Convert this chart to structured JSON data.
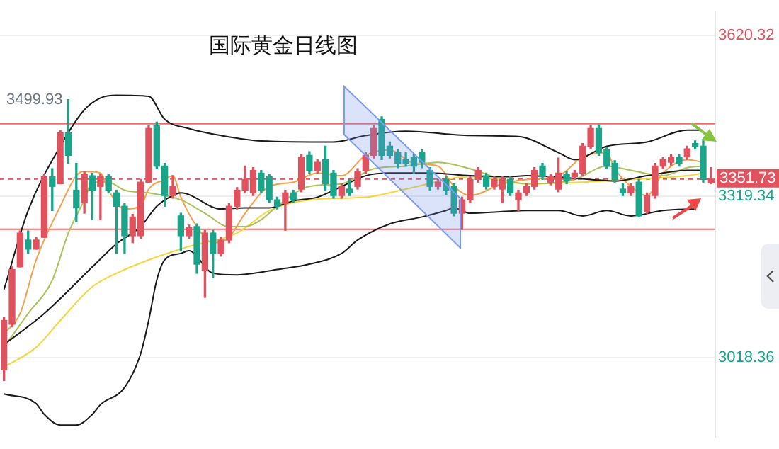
{
  "chart_data": {
    "type": "candlestick",
    "title": "国际黄金日线图",
    "categories": [
      null,
      null,
      null,
      null,
      null,
      null,
      null,
      null,
      null,
      null,
      null,
      null,
      null,
      null,
      null,
      null,
      null,
      null,
      null,
      null,
      null,
      null,
      null,
      null,
      null,
      null,
      null,
      null,
      null,
      null,
      null,
      null,
      null,
      null,
      null,
      null,
      null,
      null,
      null,
      null,
      null,
      null,
      null,
      null,
      null,
      null,
      null,
      null,
      null,
      null,
      null,
      null,
      null,
      null,
      null,
      null,
      null,
      null,
      null,
      null,
      null,
      null,
      null,
      null,
      null,
      null,
      null,
      null,
      null,
      null,
      null,
      null,
      null,
      null,
      null,
      null,
      null,
      null,
      null,
      null,
      null,
      null,
      null,
      null,
      null,
      null,
      null,
      null,
      null
    ],
    "ohlc": [
      [
        2996,
        3093,
        2976,
        3088
      ],
      [
        3081,
        3188,
        3076,
        3183
      ],
      [
        3188,
        3255,
        3188,
        3251
      ],
      [
        3238,
        3255,
        3213,
        3221
      ],
      [
        3221,
        3243,
        3221,
        3238
      ],
      [
        3243,
        3361,
        3243,
        3356
      ],
      [
        3356,
        3371,
        3293,
        3338
      ],
      [
        3343,
        3443,
        3343,
        3438
      ],
      [
        3438,
        3499.93,
        3381,
        3396
      ],
      [
        3331,
        3381,
        3273,
        3298
      ],
      [
        3308,
        3366,
        3288,
        3361
      ],
      [
        3358,
        3363,
        3276,
        3331
      ],
      [
        3338,
        3361,
        3276,
        3356
      ],
      [
        3356,
        3361,
        3326,
        3331
      ],
      [
        3326,
        3331,
        3213,
        3301
      ],
      [
        3301,
        3306,
        3213,
        3246
      ],
      [
        3246,
        3286,
        3233,
        3281
      ],
      [
        3246,
        3351,
        3241,
        3346
      ],
      [
        3346,
        3451,
        3346,
        3446
      ],
      [
        3451,
        3458,
        3371,
        3376
      ],
      [
        3376,
        3381,
        3301,
        3321
      ],
      [
        3321,
        3358,
        3316,
        3338
      ],
      [
        3283,
        3288,
        3218,
        3246
      ],
      [
        3246,
        3266,
        3241,
        3261
      ],
      [
        3263,
        3268,
        3176,
        3193
      ],
      [
        3181,
        3256,
        3131,
        3251
      ],
      [
        3251,
        3256,
        3168,
        3213
      ],
      [
        3213,
        3243,
        3208,
        3238
      ],
      [
        3238,
        3306,
        3233,
        3301
      ],
      [
        3301,
        3336,
        3296,
        3331
      ],
      [
        3331,
        3376,
        3326,
        3351
      ],
      [
        3326,
        3373,
        3321,
        3368
      ],
      [
        3363,
        3368,
        3326,
        3331
      ],
      [
        3356,
        3361,
        3308,
        3313
      ],
      [
        3313,
        3318,
        3296,
        3301
      ],
      [
        3306,
        3331,
        3256,
        3326
      ],
      [
        3326,
        3331,
        3308,
        3313
      ],
      [
        3333,
        3398,
        3328,
        3393
      ],
      [
        3396,
        3403,
        3363,
        3368
      ],
      [
        3368,
        3388,
        3363,
        3383
      ],
      [
        3388,
        3413,
        3331,
        3343
      ],
      [
        3363,
        3368,
        3316,
        3321
      ],
      [
        3321,
        3343,
        3316,
        3338
      ],
      [
        3333,
        3351,
        3321,
        3326
      ],
      [
        3338,
        3371,
        3333,
        3366
      ],
      [
        3368,
        3401,
        3363,
        3396
      ],
      [
        3396,
        3451,
        3391,
        3446
      ],
      [
        3463,
        3468,
        3388,
        3396
      ],
      [
        3413,
        3421,
        3391,
        3396
      ],
      [
        3401,
        3406,
        3373,
        3381
      ],
      [
        3388,
        3401,
        3376,
        3381
      ],
      [
        3393,
        3398,
        3363,
        3376
      ],
      [
        3401,
        3406,
        3373,
        3383
      ],
      [
        3368,
        3373,
        3331,
        3338
      ],
      [
        3338,
        3351,
        3333,
        3346
      ],
      [
        3351,
        3356,
        3323,
        3331
      ],
      [
        3338,
        3343,
        3283,
        3288
      ],
      [
        3288,
        3318,
        3258,
        3313
      ],
      [
        3313,
        3356,
        3308,
        3351
      ],
      [
        3351,
        3373,
        3346,
        3368
      ],
      [
        3358,
        3363,
        3333,
        3338
      ],
      [
        3338,
        3356,
        3333,
        3351
      ],
      [
        3333,
        3356,
        3308,
        3351
      ],
      [
        3351,
        3356,
        3321,
        3326
      ],
      [
        3313,
        3331,
        3293,
        3326
      ],
      [
        3326,
        3343,
        3321,
        3338
      ],
      [
        3338,
        3373,
        3333,
        3368
      ],
      [
        3376,
        3381,
        3351,
        3356
      ],
      [
        3346,
        3361,
        3341,
        3356
      ],
      [
        3333,
        3391,
        3328,
        3363
      ],
      [
        3361,
        3366,
        3343,
        3348
      ],
      [
        3356,
        3368,
        3351,
        3363
      ],
      [
        3363,
        3418,
        3358,
        3413
      ],
      [
        3413,
        3451,
        3408,
        3446
      ],
      [
        3446,
        3453,
        3396,
        3401
      ],
      [
        3406,
        3411,
        3371,
        3376
      ],
      [
        3381,
        3386,
        3346,
        3351
      ],
      [
        3333,
        3343,
        3321,
        3326
      ],
      [
        3326,
        3343,
        3321,
        3338
      ],
      [
        3346,
        3351,
        3281,
        3283
      ],
      [
        3291,
        3326,
        3288,
        3321
      ],
      [
        3321,
        3381,
        3316,
        3376
      ],
      [
        3376,
        3393,
        3371,
        3388
      ],
      [
        3383,
        3398,
        3378,
        3393
      ],
      [
        3393,
        3398,
        3376,
        3381
      ],
      [
        3393,
        3413,
        3388,
        3408
      ],
      [
        3418,
        3423,
        3408,
        3413
      ],
      [
        3413,
        3423,
        3346,
        3351
      ],
      [
        3345,
        3373,
        3343,
        3351.73
      ]
    ],
    "colors": [
      "#e0525e",
      "#e0525e",
      "#e0525e",
      "#1aa58a",
      "#e0525e",
      "#e0525e",
      "#1aa58a",
      "#e0525e",
      "#1aa58a",
      "#1aa58a",
      "#e0525e",
      "#1aa58a",
      "#e0525e",
      "#1aa58a",
      "#1aa58a",
      "#1aa58a",
      "#e0525e",
      "#e0525e",
      "#e0525e",
      "#1aa58a",
      "#1aa58a",
      "#e0525e",
      "#1aa58a",
      "#e0525e",
      "#1aa58a",
      "#e0525e",
      "#1aa58a",
      "#e0525e",
      "#e0525e",
      "#e0525e",
      "#e0525e",
      "#e0525e",
      "#1aa58a",
      "#1aa58a",
      "#1aa58a",
      "#e0525e",
      "#1aa58a",
      "#e0525e",
      "#1aa58a",
      "#e0525e",
      "#1aa58a",
      "#1aa58a",
      "#e0525e",
      "#1aa58a",
      "#e0525e",
      "#e0525e",
      "#e0525e",
      "#1aa58a",
      "#1aa58a",
      "#1aa58a",
      "#1aa58a",
      "#1aa58a",
      "#1aa58a",
      "#1aa58a",
      "#e0525e",
      "#1aa58a",
      "#1aa58a",
      "#e0525e",
      "#e0525e",
      "#e0525e",
      "#1aa58a",
      "#e0525e",
      "#e0525e",
      "#1aa58a",
      "#e0525e",
      "#e0525e",
      "#e0525e",
      "#1aa58a",
      "#e0525e",
      "#e0525e",
      "#1aa58a",
      "#e0525e",
      "#e0525e",
      "#e0525e",
      "#1aa58a",
      "#1aa58a",
      "#1aa58a",
      "#1aa58a",
      "#e0525e",
      "#1aa58a",
      "#e0525e",
      "#e0525e",
      "#e0525e",
      "#e0525e",
      "#1aa58a",
      "#e0525e",
      "#1aa58a",
      "#1aa58a",
      "#e0525e"
    ],
    "series": [
      {
        "type": "line",
        "color": "#1a1a1a",
        "values": [
          3146,
          null,
          null,
          3293,
          null,
          null,
          null,
          3413,
          null,
          null,
          3481,
          null,
          3503,
          null,
          3508,
          null,
          null,
          null,
          3506,
          null,
          3463,
          null,
          null,
          3446,
          null,
          null,
          null,
          3433,
          null,
          null,
          null,
          null,
          3423,
          null,
          null,
          null,
          null,
          null,
          null,
          null,
          null,
          3421,
          null,
          null,
          null,
          3433,
          null,
          null,
          null,
          null,
          3441,
          null,
          null,
          null,
          null,
          null,
          null,
          null,
          3433,
          null,
          null,
          null,
          null,
          null,
          3431,
          null,
          null,
          null,
          null,
          3401,
          null,
          3388,
          null,
          null,
          null,
          3413,
          null,
          null,
          null,
          null,
          3421,
          null,
          null,
          null,
          null,
          3443,
          null,
          3443,
          null
        ]
      },
      {
        "type": "line",
        "color": "#1a1a1a",
        "values": [
          3043,
          null,
          null,
          null,
          null,
          3101,
          null,
          null,
          null,
          null,
          null,
          3188,
          null,
          null,
          3231,
          null,
          null,
          3263,
          null,
          3301,
          null,
          3321,
          3326,
          null,
          null,
          null,
          null,
          3296,
          null,
          null,
          3298,
          null,
          null,
          3298,
          null,
          null,
          3311,
          null,
          null,
          3318,
          null,
          null,
          3338,
          null,
          null,
          3358,
          null,
          null,
          3363,
          null,
          null,
          null,
          null,
          3363,
          null,
          null,
          null,
          null,
          3358,
          null,
          null,
          null,
          null,
          3356,
          null,
          3358,
          null,
          null,
          null,
          null,
          null,
          null,
          null,
          3351,
          null,
          null,
          3348,
          null,
          null,
          null,
          3358,
          null,
          null,
          null,
          null,
          3368,
          null,
          3368,
          null
        ]
      },
      {
        "type": "line",
        "color": "#1a1a1a",
        "values": [
          2951,
          null,
          null,
          null,
          2933,
          2913,
          null,
          2893,
          null,
          2893,
          null,
          2913,
          2931,
          null,
          null,
          2963,
          null,
          3026,
          3088,
          3163,
          3201,
          null,
          3213,
          3218,
          null,
          null,
          3176,
          null,
          null,
          3173,
          null,
          3176,
          null,
          null,
          3183,
          null,
          null,
          null,
          3193,
          null,
          null,
          null,
          3213,
          null,
          3238,
          null,
          null,
          null,
          3268,
          null,
          null,
          null,
          3281,
          null,
          null,
          3293,
          3298,
          null,
          3288,
          null,
          null,
          null,
          3291,
          null,
          null,
          3293,
          null,
          null,
          null,
          3293,
          null,
          null,
          3283,
          null,
          null,
          3293,
          null,
          null,
          3283,
          null,
          null,
          null,
          3293,
          null,
          null,
          null,
          3296,
          null,
          null
        ]
      },
      {
        "type": "line",
        "color": "#f7a04b",
        "values": [
          3063,
          null,
          3101,
          null,
          3201,
          null,
          null,
          3301,
          null,
          3358,
          3366,
          null,
          3363,
          3331,
          null,
          3296,
          null,
          3301,
          3333,
          null,
          3351,
          3358,
          3318,
          null,
          3263,
          null,
          3233,
          null,
          3243,
          null,
          3288,
          null,
          null,
          3338,
          null,
          null,
          3346,
          null,
          null,
          3363,
          null,
          null,
          3358,
          null,
          null,
          3396,
          null,
          null,
          3406,
          null,
          null,
          3381,
          null,
          null,
          3376,
          null,
          3338,
          null,
          3321,
          null,
          null,
          null,
          3343,
          null,
          null,
          3351,
          null,
          null,
          null,
          3358,
          null,
          null,
          3393,
          null,
          null,
          3401,
          3371,
          null,
          3338,
          null,
          3321,
          null,
          3363,
          null,
          null,
          3388,
          null,
          3383,
          null
        ]
      },
      {
        "type": "line",
        "color": "#a9c25a",
        "values": [
          3038,
          null,
          null,
          3101,
          null,
          null,
          3163,
          null,
          3251,
          null,
          3313,
          3346,
          null,
          3346,
          null,
          3331,
          null,
          null,
          3326,
          null,
          null,
          null,
          3313,
          null,
          null,
          3288,
          null,
          null,
          3263,
          null,
          3263,
          null,
          3276,
          null,
          3301,
          null,
          null,
          null,
          3338,
          null,
          null,
          null,
          3343,
          null,
          null,
          null,
          3371,
          null,
          null,
          null,
          3376,
          null,
          null,
          null,
          3383,
          null,
          null,
          null,
          3371,
          null,
          null,
          null,
          3351,
          null,
          null,
          3343,
          null,
          null,
          null,
          null,
          null,
          3351,
          null,
          null,
          null,
          3376,
          null,
          null,
          3368,
          null,
          null,
          null,
          3358,
          null,
          null,
          3373,
          null,
          3376,
          null
        ]
      },
      {
        "type": "line",
        "color": "#f5d63d",
        "values": [
          3001,
          null,
          null,
          null,
          3038,
          null,
          null,
          3088,
          null,
          null,
          null,
          3151,
          null,
          null,
          3176,
          null,
          null,
          null,
          3201,
          null,
          null,
          null,
          null,
          3226,
          null,
          null,
          null,
          null,
          null,
          3251,
          null,
          null,
          null,
          3293,
          null,
          null,
          null,
          null,
          3313,
          null,
          null,
          null,
          null,
          null,
          null,
          3318,
          null,
          null,
          null,
          null,
          3333,
          null,
          null,
          null,
          null,
          null,
          null,
          null,
          3356,
          null,
          null,
          null,
          null,
          null,
          null,
          3343,
          null,
          null,
          null,
          null,
          null,
          null,
          3346,
          null,
          null,
          null,
          null,
          null,
          3351,
          null,
          null,
          null,
          null,
          null,
          null,
          3358,
          null,
          3363,
          null
        ]
      }
    ],
    "ylim": [
      2871,
      3663
    ],
    "yticks": [
      3018.36,
      3319.34,
      3620.32
    ],
    "grid": "y",
    "legend": false,
    "tick_labels": "y",
    "ref_lines": [
      {
        "axis": "y",
        "value": 3455,
        "color": "#f26b6b"
      },
      {
        "axis": "y",
        "value": 3258,
        "color": "#f26b6b"
      },
      {
        "axis": "y",
        "value": 3351.73,
        "label": "3351.73",
        "color": "#e0525e",
        "line_style": "dashed"
      }
    ],
    "annotations": [
      "3499.93"
    ]
  }
}
